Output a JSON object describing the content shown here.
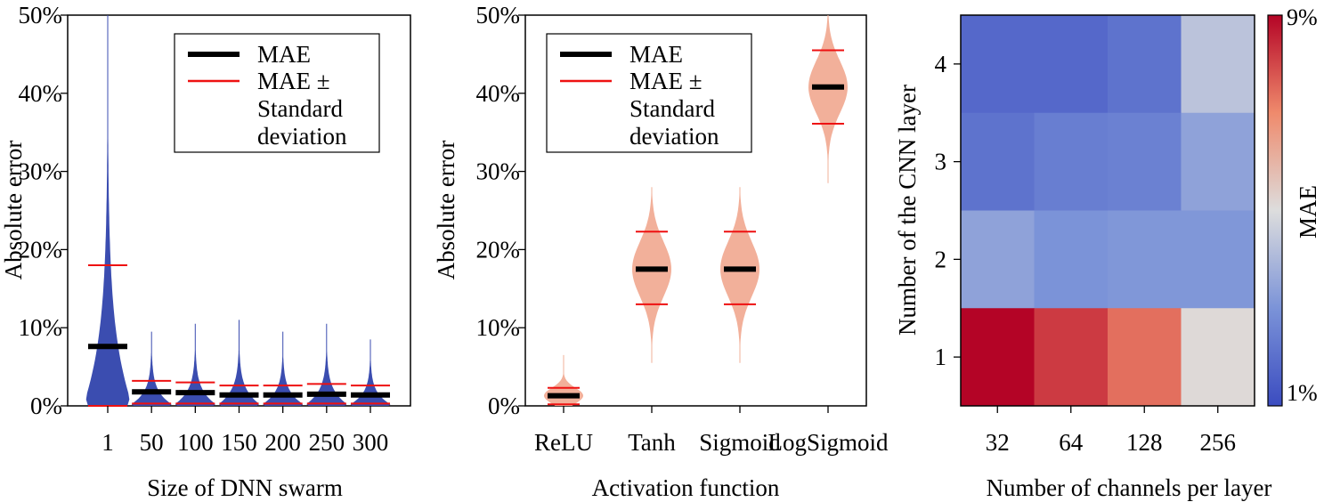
{
  "colors": {
    "violin_blue": "#3b4db0",
    "violin_salmon": "#f2b09a",
    "mae_line": "#000000",
    "std_line": "#ee1111",
    "cmap_low": "#3b4cc0",
    "cmap_mid": "#dddddd",
    "cmap_high": "#b40426"
  },
  "chart_data": [
    {
      "type": "violin",
      "xlabel": "Size of DNN swarm",
      "ylabel": "Absolute error",
      "categories": [
        "1",
        "50",
        "100",
        "150",
        "200",
        "250",
        "300"
      ],
      "ylim": [
        0,
        50
      ],
      "yticks": [
        "0%",
        "10%",
        "20%",
        "30%",
        "40%",
        "50%"
      ],
      "mae": [
        7.6,
        1.8,
        1.7,
        1.4,
        1.4,
        1.5,
        1.4
      ],
      "std_upper": [
        18.0,
        3.2,
        3.0,
        2.6,
        2.6,
        2.8,
        2.6
      ],
      "std_lower": [
        0.0,
        0.3,
        0.3,
        0.3,
        0.3,
        0.3,
        0.3
      ],
      "max": [
        50,
        9.5,
        10.5,
        11.0,
        9.5,
        10.5,
        8.5
      ],
      "legend": {
        "mae": "MAE",
        "std": "MAE ± Standard deviation",
        "position": "top-right"
      },
      "color": "blue"
    },
    {
      "type": "violin",
      "xlabel": "Activation function",
      "ylabel": "Absolute error",
      "categories": [
        "ReLU",
        "Tanh",
        "Sigmoid",
        "LogSigmoid"
      ],
      "ylim": [
        0,
        50
      ],
      "yticks": [
        "0%",
        "10%",
        "20%",
        "30%",
        "40%",
        "50%"
      ],
      "mae": [
        1.3,
        17.5,
        17.5,
        40.8
      ],
      "std_upper": [
        2.3,
        22.3,
        22.3,
        45.5
      ],
      "std_lower": [
        0.2,
        13.0,
        13.0,
        36.1
      ],
      "min": [
        0,
        5.5,
        5.5,
        28.5
      ],
      "max": [
        6.5,
        28.0,
        28.0,
        50.0
      ],
      "legend": {
        "mae": "MAE",
        "std": "MAE ± Standard deviation",
        "position": "top-left"
      },
      "color": "salmon"
    },
    {
      "type": "heatmap",
      "xlabel": "Number of channels per layer",
      "ylabel": "Number of the CNN layer",
      "x": [
        "32",
        "64",
        "128",
        "256"
      ],
      "y": [
        "4",
        "3",
        "2",
        "1"
      ],
      "values": [
        [
          1.8,
          1.8,
          2.1,
          4.3
        ],
        [
          2.1,
          2.4,
          2.5,
          3.4
        ],
        [
          3.4,
          3.0,
          3.1,
          3.1
        ],
        [
          9.0,
          8.2,
          7.4,
          5.1
        ]
      ],
      "colorbar": {
        "label": "MAE",
        "min": 1,
        "max": 9,
        "min_label": "1%",
        "max_label": "9%"
      }
    }
  ]
}
